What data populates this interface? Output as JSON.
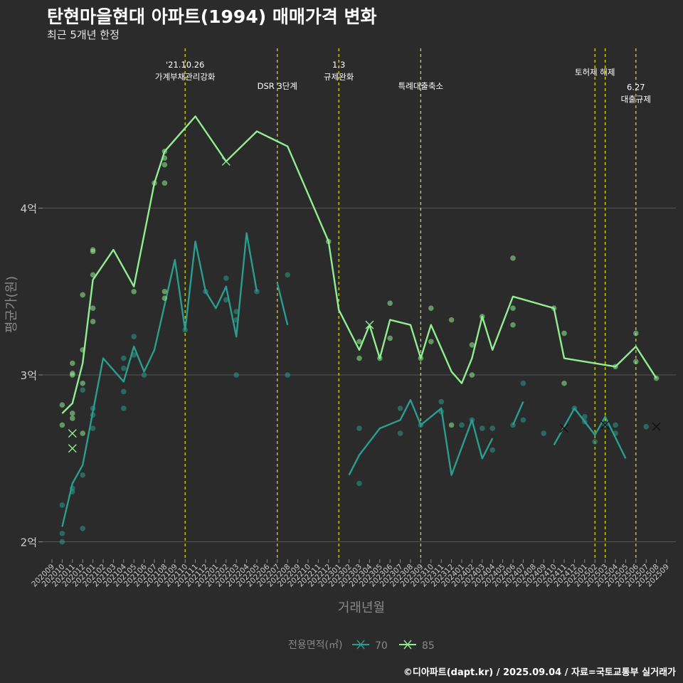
{
  "header": {
    "title": "탄현마을현대 아파트(1994) 매매가격 변화",
    "subtitle": "최근 5개년 한정",
    "caption": "©디아파트(dapt.kr) / 2025.09.04 / 자료=국토교통부 실거래가"
  },
  "chart_data": {
    "type": "line",
    "xlabel": "거래년월",
    "ylabel": "평균가(원)",
    "x": [
      "202009",
      "202010",
      "202011",
      "202012",
      "202101",
      "202102",
      "202103",
      "202104",
      "202105",
      "202106",
      "202107",
      "202108",
      "202109",
      "202110",
      "202111",
      "202112",
      "202201",
      "202202",
      "202203",
      "202204",
      "202205",
      "202206",
      "202207",
      "202208",
      "202209",
      "202210",
      "202211",
      "202212",
      "202301",
      "202302",
      "202303",
      "202304",
      "202305",
      "202306",
      "202307",
      "202308",
      "202309",
      "202310",
      "202311",
      "202312",
      "202401",
      "202402",
      "202403",
      "202404",
      "202405",
      "202406",
      "202407",
      "202408",
      "202409",
      "202410",
      "202411",
      "202412",
      "202501",
      "202502",
      "202503",
      "202504",
      "202505",
      "202506",
      "202507",
      "202508",
      "202509"
    ],
    "y_ticks": [
      {
        "value": 2,
        "label": "2억"
      },
      {
        "value": 3,
        "label": "3억"
      },
      {
        "value": 4,
        "label": "4억"
      }
    ],
    "ylim": [
      1.9,
      4.97
    ],
    "grid": true,
    "legend": {
      "title": "전용면적(㎡)",
      "placement": "bottom"
    },
    "series": [
      {
        "name": "70",
        "color": "#2a9d8f",
        "line": [
          [
            [
              1,
              2.09
            ],
            [
              2,
              2.35
            ],
            [
              3,
              2.46
            ],
            [
              5,
              3.1
            ],
            [
              7,
              2.96
            ],
            [
              8,
              3.17
            ],
            [
              9,
              3.02
            ],
            [
              10,
              3.15
            ],
            [
              12,
              3.69
            ],
            [
              13,
              3.27
            ],
            [
              14,
              3.8
            ],
            [
              15,
              3.5
            ],
            [
              16,
              3.4
            ],
            [
              17,
              3.53
            ],
            [
              18,
              3.23
            ],
            [
              19,
              3.85
            ],
            [
              20,
              3.5
            ]
          ],
          [
            [
              22,
              3.55
            ],
            [
              23,
              3.3
            ]
          ],
          [
            [
              29,
              2.4
            ],
            [
              30,
              2.52
            ],
            [
              32,
              2.68
            ],
            [
              34,
              2.73
            ],
            [
              35,
              2.85
            ],
            [
              36,
              2.7
            ],
            [
              38,
              2.8
            ],
            [
              39,
              2.4
            ],
            [
              41,
              2.73
            ],
            [
              42,
              2.5
            ],
            [
              43,
              2.62
            ]
          ],
          [
            [
              45,
              2.7
            ],
            [
              46,
              2.84
            ]
          ],
          [
            [
              49,
              2.58
            ],
            [
              51,
              2.8
            ],
            [
              53,
              2.64
            ],
            [
              54,
              2.75
            ],
            [
              56,
              2.5
            ]
          ],
          [
            [
              59,
              2.69
            ]
          ]
        ],
        "points": [
          [
            1,
            2.0
          ],
          [
            1,
            2.05
          ],
          [
            1,
            2.22
          ],
          [
            2,
            2.3
          ],
          [
            2,
            2.32
          ],
          [
            3,
            2.08
          ],
          [
            3,
            2.4
          ],
          [
            3,
            2.91
          ],
          [
            4,
            2.68
          ],
          [
            4,
            2.76
          ],
          [
            4,
            2.8
          ],
          [
            7,
            2.8
          ],
          [
            7,
            2.9
          ],
          [
            7,
            3.04
          ],
          [
            7,
            3.1
          ],
          [
            8,
            3.12
          ],
          [
            8,
            3.23
          ],
          [
            9,
            3.0
          ],
          [
            13,
            3.27
          ],
          [
            15,
            3.5
          ],
          [
            17,
            3.45
          ],
          [
            17,
            3.58
          ],
          [
            18,
            3.0
          ],
          [
            18,
            3.33
          ],
          [
            18,
            3.38
          ],
          [
            20,
            3.5
          ],
          [
            23,
            3.0
          ],
          [
            23,
            3.6
          ],
          [
            30,
            2.35
          ],
          [
            30,
            2.68
          ],
          [
            34,
            2.65
          ],
          [
            34,
            2.8
          ],
          [
            36,
            2.7
          ],
          [
            38,
            2.78
          ],
          [
            38,
            2.84
          ],
          [
            40,
            2.7
          ],
          [
            41,
            2.73
          ],
          [
            42,
            2.68
          ],
          [
            43,
            2.55
          ],
          [
            43,
            2.68
          ],
          [
            45,
            2.7
          ],
          [
            46,
            2.73
          ],
          [
            46,
            2.95
          ],
          [
            48,
            2.65
          ],
          [
            51,
            2.8
          ],
          [
            52,
            2.72
          ],
          [
            52,
            2.75
          ],
          [
            53,
            2.6
          ],
          [
            54,
            2.7
          ],
          [
            55,
            2.65
          ],
          [
            55,
            2.7
          ],
          [
            58,
            2.69
          ]
        ],
        "cancelled": [
          [
            50,
            2.68
          ],
          [
            54,
            2.7
          ],
          [
            59,
            2.69
          ]
        ]
      },
      {
        "name": "85",
        "color": "#90ee90",
        "line": [
          [
            [
              1,
              2.77
            ],
            [
              2,
              2.83
            ],
            [
              3,
              3.07
            ],
            [
              4,
              3.57
            ],
            [
              6,
              3.75
            ],
            [
              8,
              3.53
            ],
            [
              10,
              4.15
            ],
            [
              11,
              4.34
            ],
            [
              14,
              4.55
            ],
            [
              17,
              4.28
            ],
            [
              20,
              4.46
            ],
            [
              23,
              4.37
            ],
            [
              27,
              3.8
            ],
            [
              28,
              3.39
            ],
            [
              30,
              3.15
            ],
            [
              31,
              3.3
            ],
            [
              32,
              3.1
            ],
            [
              33,
              3.33
            ],
            [
              35,
              3.3
            ],
            [
              36,
              3.1
            ],
            [
              37,
              3.3
            ],
            [
              39,
              3.02
            ],
            [
              40,
              2.95
            ],
            [
              41,
              3.1
            ],
            [
              42,
              3.35
            ],
            [
              43,
              3.15
            ],
            [
              45,
              3.47
            ],
            [
              49,
              3.4
            ],
            [
              50,
              3.1
            ],
            [
              55,
              3.05
            ],
            [
              57,
              3.17
            ],
            [
              59,
              2.98
            ]
          ]
        ],
        "points": [
          [
            1,
            2.7
          ],
          [
            1,
            2.82
          ],
          [
            2,
            2.74
          ],
          [
            2,
            2.77
          ],
          [
            2,
            3.0
          ],
          [
            2,
            3.01
          ],
          [
            2,
            3.07
          ],
          [
            3,
            2.65
          ],
          [
            3,
            2.95
          ],
          [
            3,
            3.15
          ],
          [
            3,
            3.48
          ],
          [
            4,
            3.32
          ],
          [
            4,
            3.4
          ],
          [
            4,
            3.6
          ],
          [
            4,
            3.74
          ],
          [
            4,
            3.75
          ],
          [
            8,
            3.5
          ],
          [
            10,
            4.15
          ],
          [
            11,
            4.15
          ],
          [
            11,
            4.26
          ],
          [
            11,
            4.3
          ],
          [
            11,
            4.34
          ],
          [
            11,
            3.46
          ],
          [
            11,
            3.5
          ],
          [
            27,
            3.8
          ],
          [
            30,
            3.1
          ],
          [
            30,
            3.2
          ],
          [
            32,
            3.1
          ],
          [
            33,
            3.22
          ],
          [
            33,
            3.43
          ],
          [
            36,
            3.1
          ],
          [
            37,
            3.2
          ],
          [
            37,
            3.4
          ],
          [
            39,
            3.33
          ],
          [
            39,
            2.7
          ],
          [
            41,
            3.0
          ],
          [
            41,
            3.18
          ],
          [
            42,
            3.35
          ],
          [
            45,
            3.3
          ],
          [
            45,
            3.4
          ],
          [
            45,
            3.7
          ],
          [
            49,
            3.4
          ],
          [
            50,
            3.25
          ],
          [
            50,
            2.95
          ],
          [
            55,
            3.05
          ],
          [
            57,
            3.08
          ],
          [
            57,
            3.25
          ],
          [
            59,
            2.98
          ]
        ],
        "cancelled": [
          [
            2,
            2.56
          ],
          [
            2,
            2.65
          ],
          [
            17,
            4.28
          ],
          [
            31,
            3.3
          ]
        ]
      }
    ],
    "annotations": [
      {
        "x": 13,
        "lines": [
          "'21.10.26",
          "가계부채관리강화"
        ],
        "level": 0
      },
      {
        "x": 22,
        "lines": [
          "DSR 3단계"
        ],
        "level": 1
      },
      {
        "x": 28,
        "lines": [
          "1.3",
          "규제완화"
        ],
        "level": 0
      },
      {
        "x": 36,
        "lines": [
          "특례대출축소"
        ],
        "level": 1
      },
      {
        "x": 53,
        "lines": [
          "토허제 해제"
        ],
        "level": 0.35
      },
      {
        "x": 54,
        "lines": [],
        "level": 0
      },
      {
        "x": 57,
        "lines": [
          "6.27",
          "대출규제"
        ],
        "level": 1.05
      }
    ],
    "colors": {
      "annotation": "#e6e600",
      "grid": "#555555",
      "axis_text": "#cccccc"
    }
  }
}
